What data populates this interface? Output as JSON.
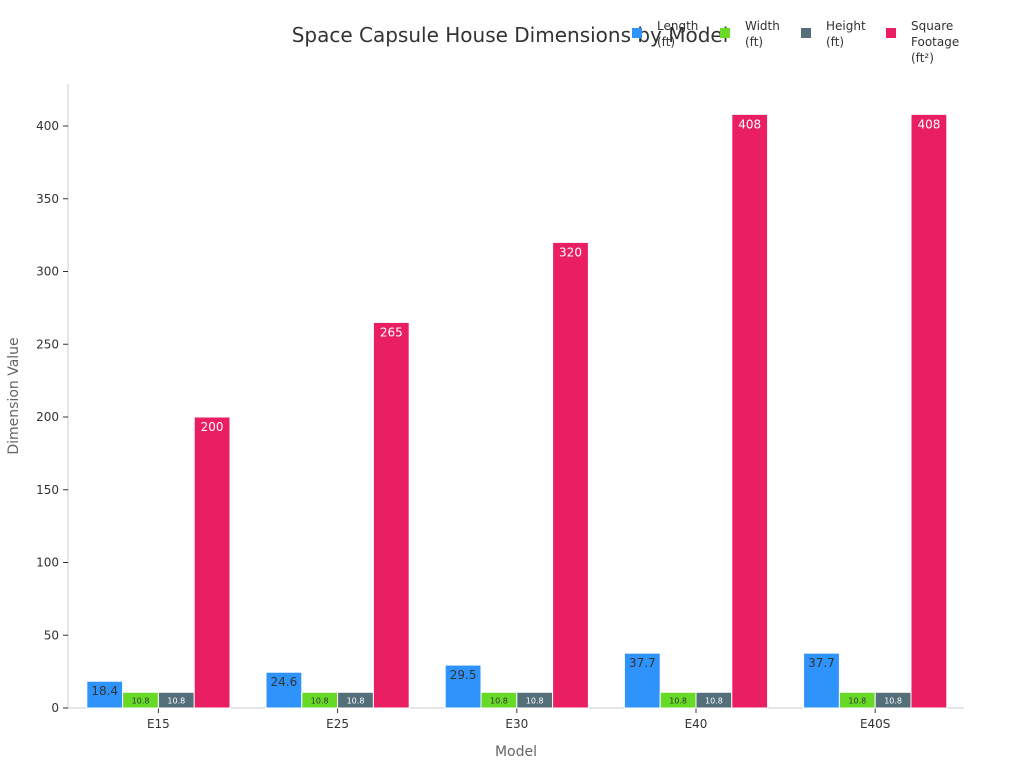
{
  "chart_data": {
    "type": "bar",
    "title": "Space Capsule House Dimensions by Model",
    "xlabel": "Model",
    "ylabel": "Dimension Value",
    "categories": [
      "E15",
      "E25",
      "E30",
      "E40",
      "E40S"
    ],
    "ylim": [
      0,
      430
    ],
    "yticks": [
      0,
      50,
      100,
      150,
      200,
      250,
      300,
      350,
      400
    ],
    "grid": false,
    "legend_position": "top-right",
    "series": [
      {
        "name": "Length (ft)",
        "legend_lines": [
          "Length",
          "(ft)"
        ],
        "color": "#2E93FA",
        "label_color": "#333333",
        "values": [
          18.4,
          24.6,
          29.5,
          37.7,
          37.7
        ]
      },
      {
        "name": "Width (ft)",
        "legend_lines": [
          "Width",
          "(ft)"
        ],
        "color": "#66DA26",
        "label_color": "#333333",
        "values": [
          10.8,
          10.8,
          10.8,
          10.8,
          10.8
        ]
      },
      {
        "name": "Height (ft)",
        "legend_lines": [
          "Height",
          "(ft)"
        ],
        "color": "#546E7A",
        "label_color": "#ffffff",
        "values": [
          10.8,
          10.8,
          10.8,
          10.8,
          10.8
        ]
      },
      {
        "name": "Square Footage (ft²)",
        "legend_lines": [
          "Square",
          "Footage",
          "(ft²)"
        ],
        "color": "#E91E63",
        "label_color": "#ffffff",
        "values": [
          200,
          265,
          320,
          408,
          408
        ]
      }
    ]
  }
}
